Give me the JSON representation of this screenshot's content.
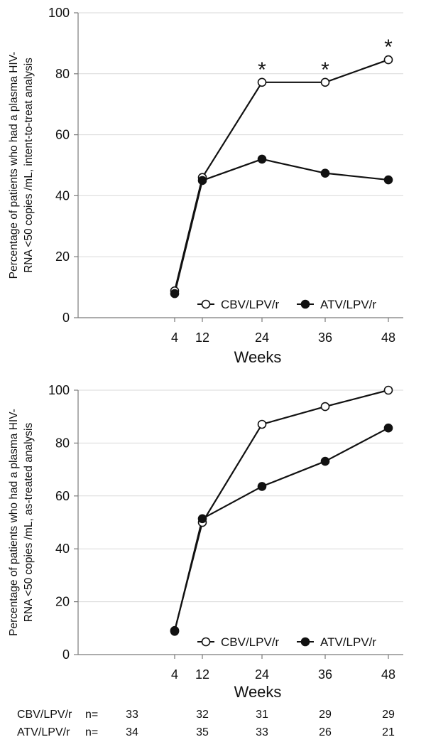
{
  "colors": {
    "line": "#111111",
    "grid": "#d9d9d9",
    "axis": "#7a7a7a",
    "open_marker_fill": "#ffffff",
    "filled_marker_fill": "#111111"
  },
  "chart_data": [
    {
      "type": "line",
      "xlabel": "Weeks",
      "ylabel": [
        "Percentage of patients who had a plasma HIV-",
        "RNA <50 copies /mL, intent-to-treat analysis"
      ],
      "ylim": [
        0,
        100
      ],
      "yticks": [
        0,
        20,
        40,
        60,
        80,
        100
      ],
      "categories": [
        "4",
        "12",
        "24",
        "36",
        "48"
      ],
      "grid": true,
      "legend": "bottom-right",
      "series": [
        {
          "name": "CBV/LPV/r",
          "marker": "open-circle",
          "values": [
            8.8,
            46.0,
            77.2,
            77.2,
            84.6
          ]
        },
        {
          "name": "ATV/LPV/r",
          "marker": "filled-circle",
          "values": [
            7.9,
            45.0,
            52.0,
            47.4,
            45.2
          ]
        }
      ],
      "annotations": [
        {
          "text": "*",
          "category": "24",
          "y": 77.2
        },
        {
          "text": "*",
          "category": "36",
          "y": 77.2
        },
        {
          "text": "*",
          "category": "48",
          "y": 84.6
        }
      ]
    },
    {
      "type": "line",
      "xlabel": "Weeks",
      "ylabel": [
        "Percentage of patients who had a plasma HIV-",
        "RNA <50 copies /mL, as-treated analysis"
      ],
      "ylim": [
        0,
        100
      ],
      "yticks": [
        0,
        20,
        40,
        60,
        80,
        100
      ],
      "categories": [
        "4",
        "12",
        "24",
        "36",
        "48"
      ],
      "grid": true,
      "legend": "bottom-right",
      "series": [
        {
          "name": "CBV/LPV/r",
          "marker": "open-circle",
          "values": [
            9.1,
            50.0,
            87.1,
            93.8,
            100.0
          ]
        },
        {
          "name": "ATV/LPV/r",
          "marker": "filled-circle",
          "values": [
            8.8,
            51.4,
            63.6,
            73.1,
            85.7
          ]
        }
      ]
    }
  ],
  "n_table": {
    "n_label": "n=",
    "rows": [
      {
        "name": "CBV/LPV/r",
        "values": [
          "33",
          "32",
          "31",
          "29",
          "29"
        ]
      },
      {
        "name": "ATV/LPV/r",
        "values": [
          "34",
          "35",
          "33",
          "26",
          "21"
        ]
      }
    ]
  }
}
